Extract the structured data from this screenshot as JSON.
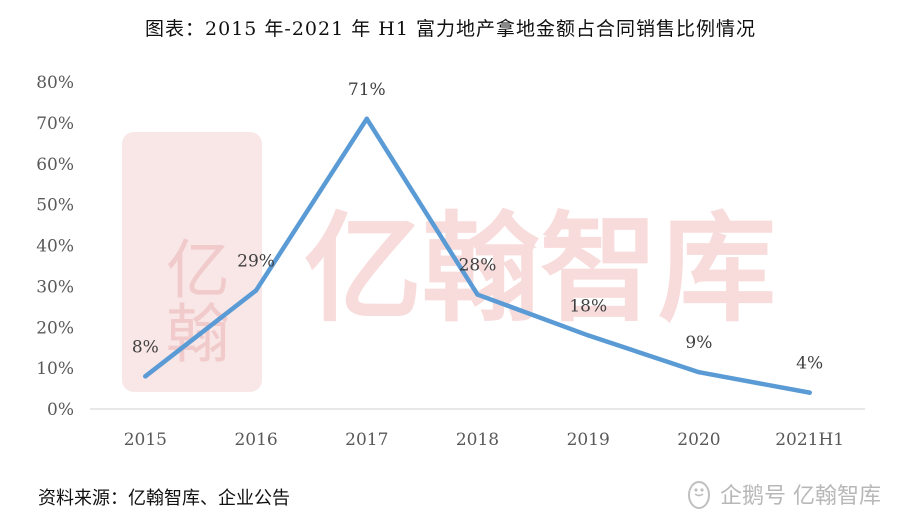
{
  "title": "图表：2015 年-2021 年 H1 富力地产拿地金额占合同销售比例情况",
  "source": "资料来源：亿翰智库、企业公告",
  "watermark": {
    "center_text": "亿翰智库",
    "seal_text": "亿翰",
    "footer_text": "企鹅号 亿翰智库",
    "footer_icon": "penguin-icon",
    "color": "#e8a7a7"
  },
  "chart_data": {
    "type": "line",
    "categories": [
      "2015",
      "2016",
      "2017",
      "2018",
      "2019",
      "2020",
      "2021H1"
    ],
    "series": [
      {
        "values": [
          8,
          29,
          71,
          28,
          18,
          9,
          4
        ],
        "color": "#5b9bd5"
      }
    ],
    "data_labels": [
      "8%",
      "29%",
      "71%",
      "28%",
      "18%",
      "9%",
      "4%"
    ],
    "y_ticks": [
      "0%",
      "10%",
      "20%",
      "30%",
      "40%",
      "50%",
      "60%",
      "70%",
      "80%"
    ],
    "ylim": [
      0,
      80
    ],
    "grid": false,
    "legend": "none"
  }
}
